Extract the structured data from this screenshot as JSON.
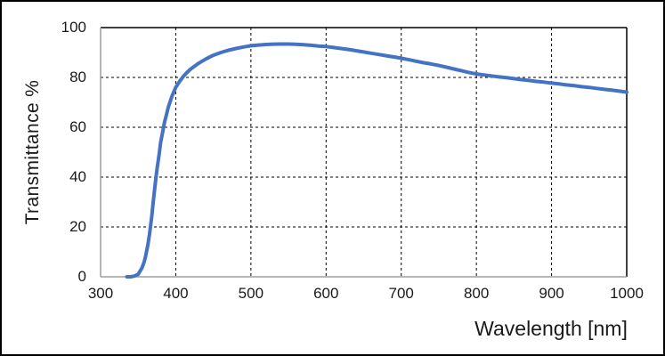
{
  "chart_data": {
    "type": "line",
    "xlabel": "Wavelength [nm]",
    "ylabel": "Transmittance %",
    "xlim": [
      300,
      1000
    ],
    "ylim": [
      0,
      100
    ],
    "x_ticks": [
      "300",
      "400",
      "500",
      "600",
      "700",
      "800",
      "900",
      "1000"
    ],
    "y_ticks": [
      "0",
      "20",
      "40",
      "60",
      "80",
      "100"
    ],
    "grid": "dashed-both-axes",
    "legend_position": "none",
    "series": [
      {
        "name": "transmittance-curve",
        "color": "#4472C4",
        "x": [
          335,
          340,
          345,
          350,
          355,
          358,
          360,
          363,
          365,
          368,
          370,
          373,
          375,
          378,
          380,
          383,
          385,
          388,
          390,
          395,
          400,
          405,
          410,
          415,
          420,
          430,
          440,
          450,
          460,
          470,
          480,
          490,
          500,
          510,
          520,
          530,
          540,
          550,
          560,
          570,
          580,
          590,
          600,
          610,
          620,
          630,
          640,
          650,
          660,
          670,
          680,
          690,
          700,
          710,
          720,
          730,
          740,
          750,
          760,
          770,
          780,
          790,
          800,
          810,
          820,
          830,
          840,
          850,
          860,
          870,
          880,
          890,
          900,
          910,
          920,
          930,
          940,
          950,
          960,
          970,
          980,
          990,
          1000
        ],
        "y": [
          0,
          0,
          0.3,
          1,
          3.5,
          6,
          8.5,
          13,
          17,
          24,
          30,
          38,
          43,
          49.5,
          54,
          58.8,
          62,
          65.5,
          68,
          72.5,
          76,
          78.4,
          80.4,
          82,
          83.4,
          85.6,
          87.4,
          88.9,
          90,
          90.9,
          91.6,
          92.2,
          92.7,
          93,
          93.2,
          93.35,
          93.4,
          93.4,
          93.3,
          93.1,
          92.9,
          92.6,
          92.4,
          92,
          91.6,
          91.2,
          90.7,
          90.2,
          89.7,
          89.2,
          88.7,
          88.2,
          87.7,
          87.1,
          86.5,
          85.9,
          85.4,
          84.8,
          84.1,
          83.4,
          82.7,
          82,
          81.4,
          81,
          80.6,
          80.2,
          79.9,
          79.5,
          79.1,
          78.8,
          78.4,
          78.1,
          77.7,
          77.4,
          77,
          76.7,
          76.3,
          76,
          75.6,
          75.2,
          74.9,
          74.5,
          74.1
        ]
      }
    ]
  },
  "style": {
    "line_color": "#4472C4",
    "grid_color": "#000000",
    "axis_color": "#9d9d9d",
    "plot_border_color": "#000000",
    "text_color": "#1a1a1a",
    "background": "#ffffff",
    "frame_color": "#000000"
  }
}
